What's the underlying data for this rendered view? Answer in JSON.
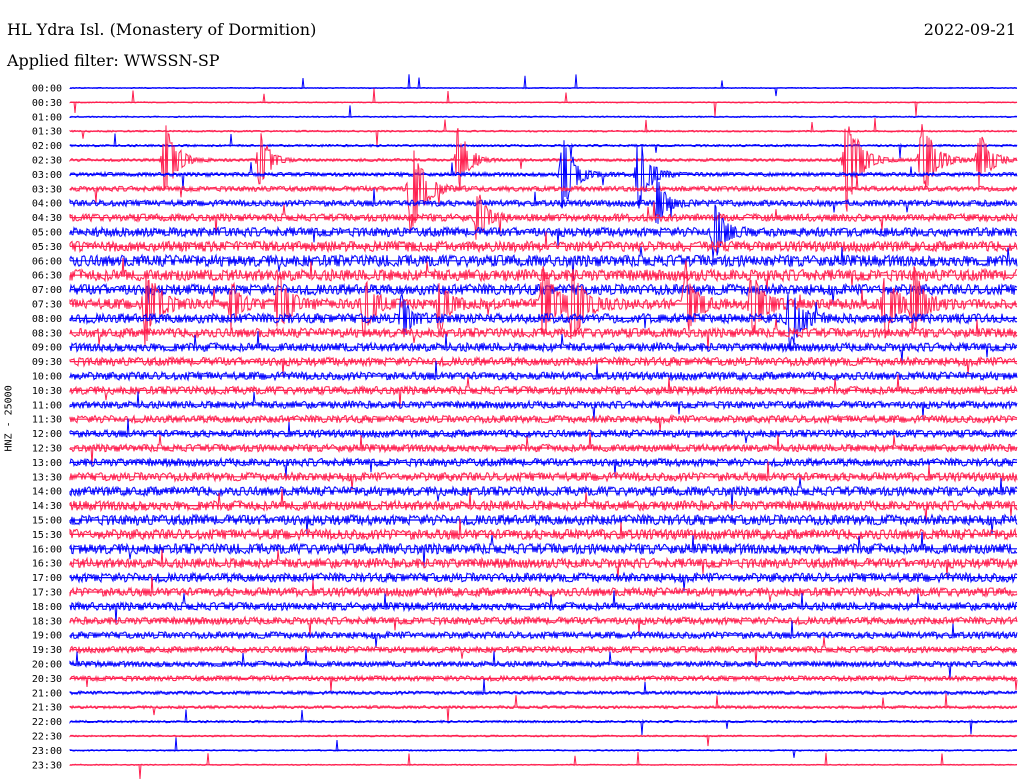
{
  "header": {
    "title": "HL Ydra Isl. (Monastery of Dormition)",
    "filter": "Applied filter: WWSSN-SP",
    "date": "2022-09-21"
  },
  "chart_data": {
    "type": "line",
    "title": "HL Ydra Isl. (Monastery of Dormition)",
    "ylabel": "HNZ - 25000",
    "colors": [
      "#0000ff",
      "#ff1f4f"
    ],
    "rows": [
      "00:00",
      "00:30",
      "01:00",
      "01:30",
      "02:00",
      "02:30",
      "03:00",
      "03:30",
      "04:00",
      "04:30",
      "05:00",
      "05:30",
      "06:00",
      "06:30",
      "07:00",
      "07:30",
      "08:00",
      "08:30",
      "09:00",
      "09:30",
      "10:00",
      "10:30",
      "11:00",
      "11:30",
      "12:00",
      "12:30",
      "13:00",
      "13:30",
      "14:00",
      "14:30",
      "15:00",
      "15:30",
      "16:00",
      "16:30",
      "17:00",
      "17:30",
      "18:00",
      "18:30",
      "19:00",
      "19:30",
      "20:00",
      "20:30",
      "21:00",
      "21:30",
      "22:00",
      "22:30",
      "23:00",
      "23:30"
    ],
    "noise": [
      0.4,
      0.4,
      0.5,
      0.6,
      0.8,
      1.0,
      1.4,
      1.8,
      2.2,
      2.6,
      3.2,
      3.6,
      4.0,
      4.0,
      3.8,
      3.6,
      3.4,
      3.2,
      3.0,
      3.0,
      2.8,
      2.8,
      2.6,
      2.6,
      2.6,
      2.6,
      2.8,
      3.0,
      3.2,
      3.4,
      3.6,
      3.6,
      3.6,
      3.4,
      3.2,
      3.0,
      2.8,
      2.6,
      2.4,
      2.2,
      2.0,
      1.8,
      1.2,
      1.0,
      0.8,
      0.6,
      0.5,
      0.4
    ],
    "events": [
      {
        "row": 5,
        "x": 0.1,
        "amp": 45,
        "w": 0.018
      },
      {
        "row": 5,
        "x": 0.2,
        "amp": 35,
        "w": 0.015
      },
      {
        "row": 7,
        "x": 0.36,
        "amp": 50,
        "w": 0.02
      },
      {
        "row": 5,
        "x": 0.41,
        "amp": 40,
        "w": 0.016
      },
      {
        "row": 6,
        "x": 0.52,
        "amp": 45,
        "w": 0.018
      },
      {
        "row": 6,
        "x": 0.6,
        "amp": 38,
        "w": 0.018
      },
      {
        "row": 5,
        "x": 0.82,
        "amp": 55,
        "w": 0.02
      },
      {
        "row": 5,
        "x": 0.9,
        "amp": 40,
        "w": 0.022
      },
      {
        "row": 5,
        "x": 0.96,
        "amp": 30,
        "w": 0.018
      },
      {
        "row": 9,
        "x": 0.43,
        "amp": 30,
        "w": 0.014
      },
      {
        "row": 10,
        "x": 0.68,
        "amp": 30,
        "w": 0.016
      },
      {
        "row": 8,
        "x": 0.62,
        "amp": 25,
        "w": 0.014
      },
      {
        "row": 15,
        "x": 0.08,
        "amp": 45,
        "w": 0.018
      },
      {
        "row": 15,
        "x": 0.17,
        "amp": 30,
        "w": 0.012
      },
      {
        "row": 15,
        "x": 0.22,
        "amp": 35,
        "w": 0.016
      },
      {
        "row": 15,
        "x": 0.31,
        "amp": 38,
        "w": 0.014
      },
      {
        "row": 16,
        "x": 0.35,
        "amp": 28,
        "w": 0.012
      },
      {
        "row": 15,
        "x": 0.39,
        "amp": 34,
        "w": 0.014
      },
      {
        "row": 15,
        "x": 0.5,
        "amp": 40,
        "w": 0.02
      },
      {
        "row": 15,
        "x": 0.53,
        "amp": 42,
        "w": 0.018
      },
      {
        "row": 15,
        "x": 0.65,
        "amp": 42,
        "w": 0.016
      },
      {
        "row": 15,
        "x": 0.72,
        "amp": 36,
        "w": 0.018
      },
      {
        "row": 16,
        "x": 0.76,
        "amp": 35,
        "w": 0.018
      },
      {
        "row": 15,
        "x": 0.86,
        "amp": 35,
        "w": 0.018
      },
      {
        "row": 15,
        "x": 0.89,
        "amp": 38,
        "w": 0.016
      }
    ]
  }
}
